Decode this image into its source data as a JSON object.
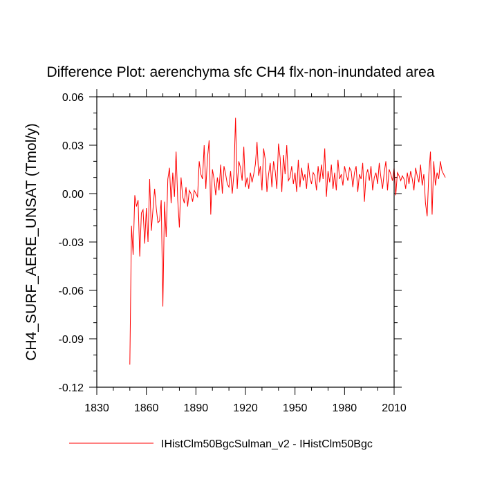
{
  "chart_data": {
    "type": "line",
    "title": "Difference Plot: aerenchyma sfc CH4 flx-non-inundated area",
    "xlabel": "",
    "ylabel": "CH4_SURF_AERE_UNSAT  (Tmol/y)",
    "xlim": [
      1830,
      2010
    ],
    "ylim": [
      -0.12,
      0.06
    ],
    "xticks": [
      1830,
      1860,
      1890,
      1920,
      1950,
      1980,
      2010
    ],
    "xtick_labels": [
      "1830",
      "1860",
      "1890",
      "1920",
      "1950",
      "1980",
      "2010"
    ],
    "yticks": [
      -0.12,
      -0.09,
      -0.06,
      -0.03,
      0.0,
      0.03,
      0.06
    ],
    "ytick_labels": [
      "-0.12",
      "-0.09",
      "-0.06",
      "-0.03",
      "0.00",
      "0.03",
      "0.06"
    ],
    "grid": false,
    "legend_position": "bottom",
    "series": [
      {
        "name": "IHistClm50BgcSulman_v2 - IHistClm50Bgc",
        "color": "#ff0000",
        "x_start": 1850,
        "x_step": 1,
        "values": [
          -0.106,
          -0.02,
          -0.038,
          -0.001,
          -0.008,
          -0.004,
          -0.039,
          -0.012,
          -0.01,
          -0.031,
          -0.009,
          -0.03,
          0.009,
          -0.023,
          -0.01,
          0.003,
          -0.009,
          -0.018,
          -0.017,
          -0.004,
          -0.07,
          -0.005,
          -0.027,
          0.009,
          0.016,
          -0.006,
          0.013,
          -0.002,
          0.026,
          -0.004,
          -0.021,
          0.01,
          -0.002,
          -0.006,
          0.004,
          -0.008,
          0.002,
          0.0,
          -0.005,
          0.002,
          0.0,
          -0.002,
          0.02,
          0.012,
          0.009,
          0.03,
          0.003,
          0.022,
          0.033,
          -0.013,
          0.015,
          0.009,
          -0.001,
          0.01,
          0.002,
          0.018,
          0.0,
          0.017,
          0.012,
          0.006,
          0.004,
          0.014,
          0.0,
          0.012,
          0.047,
          0.003,
          0.02,
          0.016,
          0.008,
          0.029,
          0.004,
          0.01,
          0.003,
          0.013,
          0.007,
          0.012,
          0.018,
          0.032,
          0.011,
          0.017,
          0.002,
          0.028,
          0.021,
          0.001,
          0.012,
          0.019,
          0.004,
          0.02,
          0.014,
          0.003,
          0.031,
          0.022,
          0.001,
          0.024,
          0.012,
          0.03,
          0.008,
          0.01,
          0.017,
          0.006,
          0.013,
          0.001,
          0.021,
          0.004,
          0.016,
          0.008,
          0.012,
          0.003,
          0.019,
          0.01,
          0.006,
          0.013,
          0.011,
          0.002,
          0.017,
          0.007,
          0.018,
          0.009,
          0.028,
          -0.002,
          0.014,
          0.007,
          0.018,
          0.003,
          0.013,
          0.002,
          0.021,
          0.009,
          0.012,
          0.005,
          0.017,
          0.012,
          0.008,
          0.016,
          0.014,
          0.004,
          0.013,
          0.017,
          0.001,
          0.012,
          0.009,
          0.019,
          -0.005,
          0.011,
          0.015,
          0.008,
          0.017,
          0.002,
          0.01,
          0.013,
          0.006,
          0.019,
          0.01,
          0.003,
          0.013,
          0.02,
          0.002,
          0.015,
          0.012,
          0.008,
          0.016,
          -0.001,
          0.013,
          0.011,
          0.008,
          0.011,
          0.009,
          0.003,
          0.013,
          0.006,
          0.014,
          0.009,
          0.002,
          0.016,
          0.011,
          0.007,
          0.018,
          0.005,
          0.012,
          -0.006,
          -0.014,
          0.012,
          0.026,
          -0.013,
          0.02,
          0.005,
          0.013,
          0.009,
          0.02,
          0.014,
          0.012,
          0.01
        ]
      }
    ]
  }
}
